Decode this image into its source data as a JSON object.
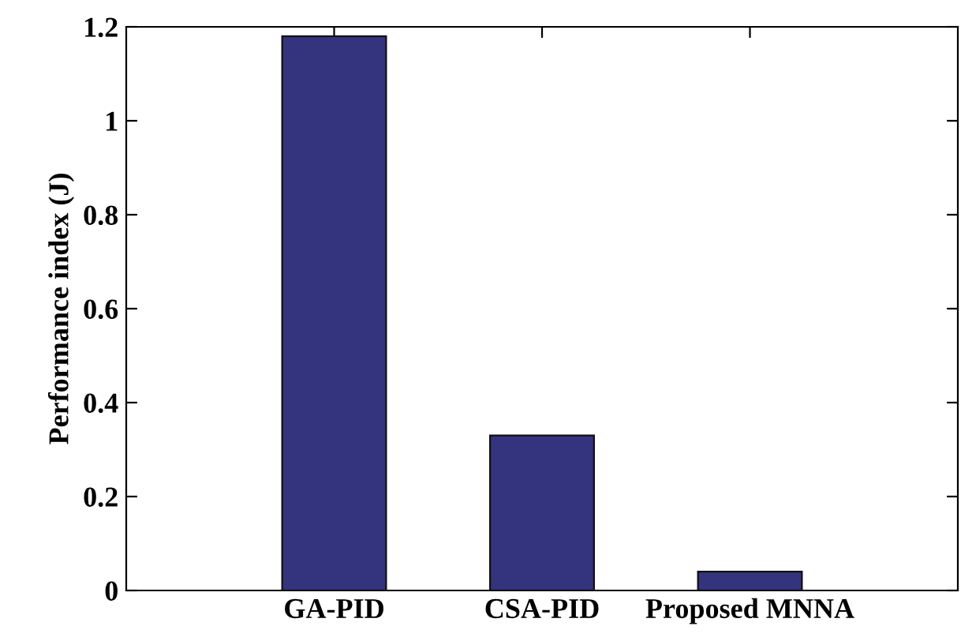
{
  "chart_data": {
    "type": "bar",
    "ylabel": "Performance index (J)",
    "categories": [
      "GA-PID",
      "CSA-PID",
      "Proposed MNNA"
    ],
    "values": [
      1.18,
      0.33,
      0.04
    ],
    "color": "#34337e",
    "ylim": [
      0,
      1.2
    ],
    "yticks": [
      0,
      0.2,
      0.4,
      0.6,
      0.8,
      1,
      1.2
    ],
    "grid": false
  }
}
